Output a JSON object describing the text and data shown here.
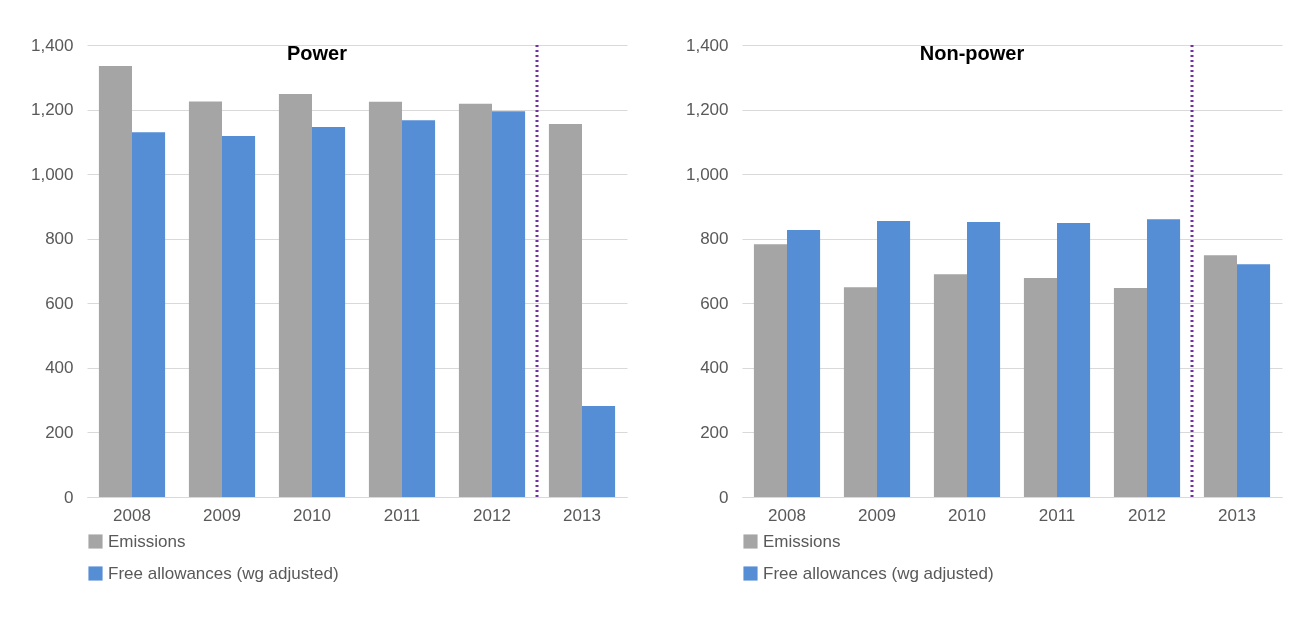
{
  "chart_data": [
    {
      "type": "bar",
      "title": "Power",
      "categories": [
        "2008",
        "2009",
        "2010",
        "2011",
        "2012",
        "2013"
      ],
      "series": [
        {
          "name": "Emissions",
          "color": "#a5a5a5",
          "values": [
            1335,
            1225,
            1248,
            1224,
            1218,
            1155
          ]
        },
        {
          "name": "Free allowances (wg adjusted)",
          "color": "#558ed5",
          "values": [
            1130,
            1118,
            1146,
            1167,
            1195,
            282
          ]
        }
      ],
      "ylim": [
        0,
        1400
      ],
      "yticks": [
        {
          "value": 0,
          "label": "0"
        },
        {
          "value": 200,
          "label": "200"
        },
        {
          "value": 400,
          "label": "400"
        },
        {
          "value": 600,
          "label": "600"
        },
        {
          "value": 800,
          "label": "800"
        },
        {
          "value": 1000,
          "label": "1,000"
        },
        {
          "value": 1200,
          "label": "1,200"
        },
        {
          "value": 1400,
          "label": "1,400"
        }
      ],
      "grid": "y",
      "legend": "bottom",
      "ref_lines": [
        {
          "axis": "x",
          "value": "2013",
          "color": "#7030a0",
          "line_style": "dotted"
        }
      ]
    },
    {
      "type": "bar",
      "title": "Non-power",
      "categories": [
        "2008",
        "2009",
        "2010",
        "2011",
        "2012",
        "2013"
      ],
      "series": [
        {
          "name": "Emissions",
          "color": "#a5a5a5",
          "values": [
            783,
            650,
            690,
            678,
            647,
            749
          ]
        },
        {
          "name": "Free allowances (wg adjusted)",
          "color": "#558ed5",
          "values": [
            827,
            855,
            852,
            849,
            860,
            721
          ]
        }
      ],
      "ylim": [
        0,
        1400
      ],
      "yticks": [
        {
          "value": 0,
          "label": "0"
        },
        {
          "value": 200,
          "label": "200"
        },
        {
          "value": 400,
          "label": "400"
        },
        {
          "value": 600,
          "label": "600"
        },
        {
          "value": 800,
          "label": "800"
        },
        {
          "value": 1000,
          "label": "1,000"
        },
        {
          "value": 1200,
          "label": "1,200"
        },
        {
          "value": 1400,
          "label": "1,400"
        }
      ],
      "grid": "y",
      "legend": "bottom",
      "ref_lines": [
        {
          "axis": "x",
          "value": "2013",
          "color": "#7030a0",
          "line_style": "dotted"
        }
      ]
    }
  ]
}
